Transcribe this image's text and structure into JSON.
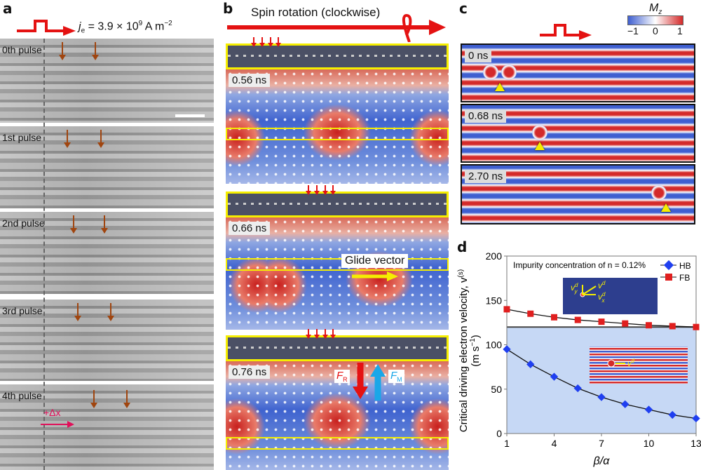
{
  "panels": {
    "a": "a",
    "b": "b",
    "c": "c",
    "d": "d"
  },
  "panel_a": {
    "current": {
      "symbol": "j",
      "sub": "e",
      "text": " = 3.9 × 10",
      "exp": "9",
      "unit": " A m",
      "unit_exp": "−2"
    },
    "pulses": [
      "0th pulse",
      "1st pulse",
      "2nd pulse",
      "3rd pulse",
      "4th pulse"
    ],
    "displacement": "+Δx"
  },
  "panel_b": {
    "title": "Spin rotation (clockwise)",
    "times": [
      "0.56 ns",
      "0.66 ns",
      "0.76 ns"
    ],
    "glide": "Glide vector",
    "force_r": {
      "sym": "F",
      "sub": "R"
    },
    "force_m": {
      "sym": "F",
      "sub": "M"
    }
  },
  "panel_c": {
    "colorbar": {
      "title": "M",
      "sub": "z",
      "ticks": [
        "−1",
        "0",
        "1"
      ],
      "low": "#3f5fd0",
      "mid": "#ffffff",
      "high": "#d42a2a"
    },
    "times": [
      "0 ns",
      "0.68 ns",
      "2.70 ns"
    ]
  },
  "chart_data": {
    "type": "line",
    "ylabel": "Critical driving electron velocity, v(s) (m s−1)",
    "ylabel_parts": {
      "line1": "Critical driving electron velocity, v",
      "sup": "(s)",
      "line2": "(m s",
      "line2_sup": "−1",
      "line2_end": ")"
    },
    "xlabel": "β/α",
    "annotation": "Impurity concentration of n = 0.12%",
    "xlim": [
      1,
      13
    ],
    "ylim": [
      0,
      200
    ],
    "xticks": [
      "1",
      "4",
      "7",
      "10",
      "13"
    ],
    "yticks": [
      "0",
      "50",
      "100",
      "150",
      "200"
    ],
    "threshold": 120,
    "threshold_fill": "#c6d8f5",
    "x": [
      1,
      2.5,
      4,
      5.5,
      7,
      8.5,
      10,
      11.5,
      13
    ],
    "series": [
      {
        "name": "HB",
        "color": "#1f3ff0",
        "marker": "diamond",
        "values": [
          95,
          78,
          64,
          51,
          41,
          33,
          27,
          21,
          17
        ]
      },
      {
        "name": "FB",
        "color": "#e01f1f",
        "marker": "square",
        "values": [
          140,
          135,
          131,
          128,
          126,
          124,
          122,
          121,
          120
        ]
      }
    ],
    "legend": "top-right",
    "inset_labels": {
      "vd": "v",
      "vyd": "v",
      "vxd": "v",
      "sup": "d",
      "y": "y",
      "x": "x"
    }
  }
}
